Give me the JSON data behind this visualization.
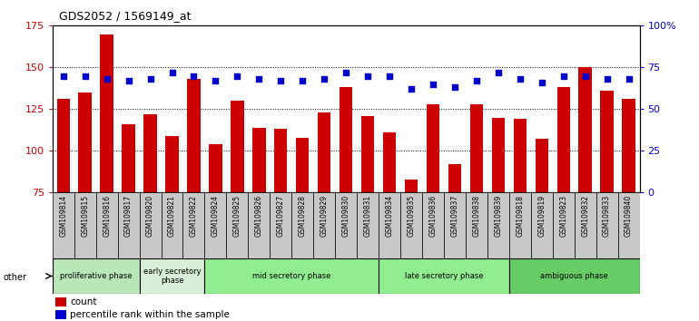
{
  "title": "GDS2052 / 1569149_at",
  "samples": [
    "GSM109814",
    "GSM109815",
    "GSM109816",
    "GSM109817",
    "GSM109820",
    "GSM109821",
    "GSM109822",
    "GSM109824",
    "GSM109825",
    "GSM109826",
    "GSM109827",
    "GSM109828",
    "GSM109829",
    "GSM109830",
    "GSM109831",
    "GSM109834",
    "GSM109835",
    "GSM109836",
    "GSM109837",
    "GSM109838",
    "GSM109839",
    "GSM109818",
    "GSM109819",
    "GSM109823",
    "GSM109832",
    "GSM109833",
    "GSM109840"
  ],
  "counts": [
    131,
    135,
    170,
    116,
    122,
    109,
    143,
    104,
    130,
    114,
    113,
    108,
    123,
    138,
    121,
    111,
    83,
    128,
    92,
    128,
    120,
    119,
    107,
    138,
    150,
    136,
    131
  ],
  "percentiles": [
    70,
    70,
    68,
    67,
    68,
    72,
    70,
    67,
    70,
    68,
    67,
    67,
    68,
    72,
    70,
    70,
    62,
    65,
    63,
    67,
    72,
    68,
    66,
    70,
    70,
    68,
    68
  ],
  "ylim_left": [
    75,
    175
  ],
  "ylim_right": [
    0,
    100
  ],
  "yticks_left": [
    75,
    100,
    125,
    150,
    175
  ],
  "yticks_right": [
    0,
    25,
    50,
    75,
    100
  ],
  "yticklabels_right": [
    "0",
    "25",
    "50",
    "75",
    "100%"
  ],
  "phases": [
    {
      "label": "proliferative phase",
      "start": 0,
      "end": 4,
      "color": "#b8e8b8"
    },
    {
      "label": "early secretory\nphase",
      "start": 4,
      "end": 7,
      "color": "#d8f0d8"
    },
    {
      "label": "mid secretory phase",
      "start": 7,
      "end": 15,
      "color": "#90EE90"
    },
    {
      "label": "late secretory phase",
      "start": 15,
      "end": 21,
      "color": "#90EE90"
    },
    {
      "label": "ambiguous phase",
      "start": 21,
      "end": 27,
      "color": "#66CC66"
    }
  ],
  "bar_color": "#cc0000",
  "dot_color": "#0000cc",
  "plot_bg": "#ffffff",
  "tick_bg": "#c8c8c8",
  "axis_color_left": "#cc0000",
  "axis_color_right": "#0000cc",
  "other_label": "other",
  "legend_count": "count",
  "legend_percentile": "percentile rank within the sample"
}
